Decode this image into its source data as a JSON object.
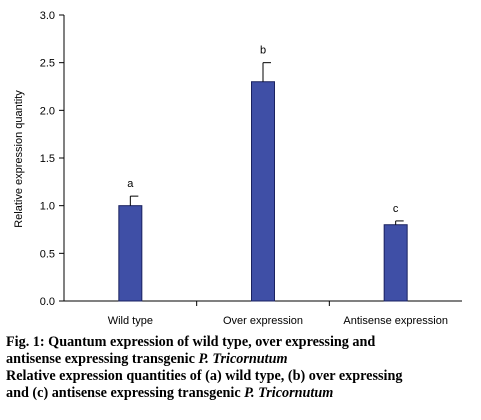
{
  "chart_data": {
    "type": "bar",
    "categories": [
      "Wild type",
      "Over expression",
      "Antisense expression"
    ],
    "values": [
      1.0,
      2.3,
      0.8
    ],
    "errors": [
      0.1,
      0.2,
      0.04
    ],
    "labels": [
      "a",
      "b",
      "c"
    ],
    "ylabel": "Relative expression quantity",
    "xlabel": "",
    "ylim": [
      0,
      3.0
    ],
    "yticks": [
      "0.0",
      "0.5",
      "1.0",
      "1.5",
      "2.0",
      "2.5",
      "3.0"
    ],
    "bar_color": "#3f4fa6",
    "grid": false
  },
  "caption": {
    "line1": "Fig. 1: Quantum expression of wild type, over expressing and",
    "line2_prefix": "antisense expressing transgenic ",
    "line2_italic": "P. Tricornutum",
    "line3": "Relative expression quantities of (a) wild type, (b) over expressing",
    "line4_prefix": "and (c) antisense expressing transgenic ",
    "line4_italic": "P. Tricornutum"
  }
}
